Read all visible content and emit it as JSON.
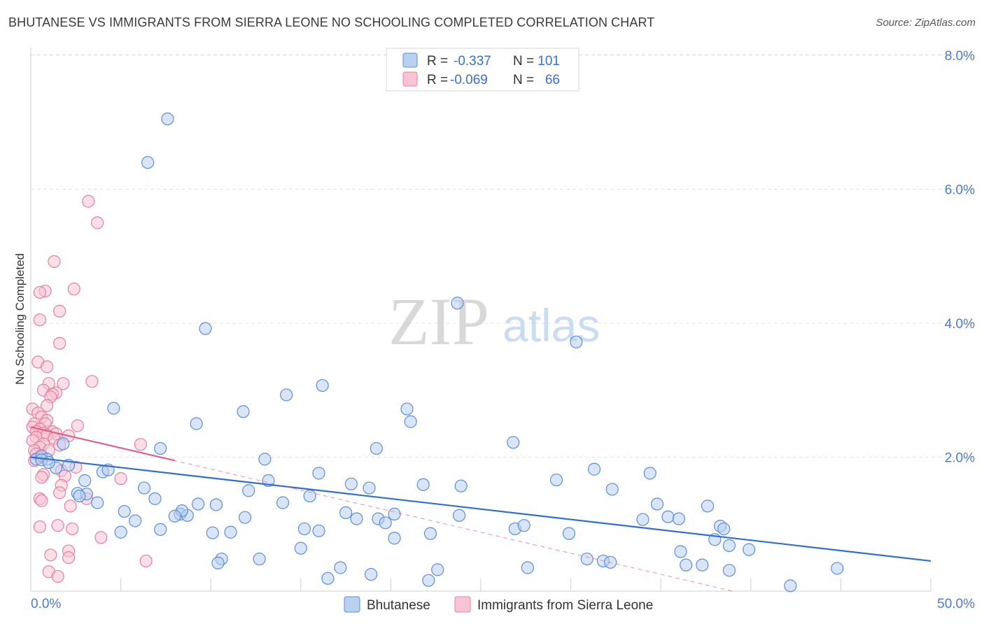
{
  "title": "BHUTANESE VS IMMIGRANTS FROM SIERRA LEONE NO SCHOOLING COMPLETED CORRELATION CHART",
  "source": "Source: ZipAtlas.com",
  "watermark": {
    "zip": "ZIP",
    "atlas": "atlas"
  },
  "colors": {
    "blue": "#5b8fd6",
    "blue_fill": "#b9d0f0",
    "blue_line": "#2f6fd0",
    "pink": "#e77fa2",
    "pink_fill": "#f6c4d4",
    "pink_line": "#e0608d"
  },
  "legend": {
    "rows": [
      {
        "r_label": "R =",
        "r_value": "-0.337",
        "n_label": "N =",
        "n_value": "101"
      },
      {
        "r_label": "R =",
        "r_value": "-0.069",
        "n_label": "N =",
        "n_value": "66"
      }
    ]
  },
  "bottom_legend": [
    "Bhutanese",
    "Immigrants from Sierra Leone"
  ],
  "chart_data": {
    "type": "scatter",
    "xlabel": "",
    "ylabel": "No Schooling Completed",
    "xlim": [
      0,
      50
    ],
    "ylim": [
      0,
      8.0
    ],
    "x_tick_labels": [
      "0.0%",
      "50.0%"
    ],
    "y_tick_labels": [
      "2.0%",
      "4.0%",
      "6.0%",
      "8.0%"
    ],
    "y_ticks": [
      2,
      4,
      6,
      8
    ],
    "grid": true,
    "series": [
      {
        "name": "Bhutanese",
        "r": -0.337,
        "n": 101,
        "trend": {
          "x": [
            0,
            50
          ],
          "y": [
            2.0,
            0.45
          ]
        },
        "points": [
          [
            7.6,
            7.05
          ],
          [
            6.5,
            6.4
          ],
          [
            9.7,
            3.92
          ],
          [
            16.2,
            3.07
          ],
          [
            23.7,
            4.3
          ],
          [
            30.3,
            3.72
          ],
          [
            4.6,
            2.73
          ],
          [
            11.8,
            2.68
          ],
          [
            14.2,
            2.93
          ],
          [
            20.9,
            2.72
          ],
          [
            9.2,
            2.5
          ],
          [
            21.1,
            2.53
          ],
          [
            7.2,
            2.13
          ],
          [
            19.2,
            2.13
          ],
          [
            26.8,
            2.22
          ],
          [
            1.8,
            2.2
          ],
          [
            0.3,
            1.97
          ],
          [
            0.6,
            2.02
          ],
          [
            0.9,
            1.97
          ],
          [
            1.4,
            1.84
          ],
          [
            2.1,
            1.88
          ],
          [
            3.0,
            1.65
          ],
          [
            4.0,
            1.78
          ],
          [
            4.3,
            1.81
          ],
          [
            13.0,
            1.97
          ],
          [
            13.2,
            1.65
          ],
          [
            16.0,
            1.76
          ],
          [
            17.8,
            1.6
          ],
          [
            18.8,
            1.54
          ],
          [
            21.8,
            1.59
          ],
          [
            23.9,
            1.57
          ],
          [
            29.2,
            1.66
          ],
          [
            32.3,
            1.52
          ],
          [
            34.4,
            1.76
          ],
          [
            6.3,
            1.54
          ],
          [
            6.9,
            1.38
          ],
          [
            12.1,
            1.5
          ],
          [
            15.5,
            1.42
          ],
          [
            2.6,
            1.46
          ],
          [
            3.7,
            1.32
          ],
          [
            3.1,
            1.45
          ],
          [
            9.3,
            1.3
          ],
          [
            10.3,
            1.29
          ],
          [
            14.0,
            1.32
          ],
          [
            5.2,
            1.19
          ],
          [
            5.8,
            1.05
          ],
          [
            8.3,
            1.15
          ],
          [
            8.7,
            1.13
          ],
          [
            8.4,
            1.2
          ],
          [
            11.9,
            1.1
          ],
          [
            17.5,
            1.17
          ],
          [
            18.1,
            1.08
          ],
          [
            19.3,
            1.08
          ],
          [
            19.7,
            1.02
          ],
          [
            20.2,
            1.15
          ],
          [
            23.8,
            1.13
          ],
          [
            34.0,
            1.07
          ],
          [
            34.8,
            1.3
          ],
          [
            35.4,
            1.11
          ],
          [
            36.0,
            1.08
          ],
          [
            37.6,
            1.27
          ],
          [
            38.3,
            0.97
          ],
          [
            38.5,
            0.93
          ],
          [
            26.9,
            0.93
          ],
          [
            27.4,
            0.98
          ],
          [
            15.2,
            0.93
          ],
          [
            16.0,
            0.9
          ],
          [
            11.1,
            0.88
          ],
          [
            5.0,
            0.88
          ],
          [
            7.2,
            0.92
          ],
          [
            10.1,
            0.87
          ],
          [
            22.2,
            0.86
          ],
          [
            29.9,
            0.86
          ],
          [
            20.2,
            0.79
          ],
          [
            38.0,
            0.77
          ],
          [
            38.8,
            0.68
          ],
          [
            39.9,
            0.62
          ],
          [
            15.0,
            0.64
          ],
          [
            36.1,
            0.59
          ],
          [
            30.9,
            0.48
          ],
          [
            31.8,
            0.45
          ],
          [
            32.2,
            0.43
          ],
          [
            36.4,
            0.39
          ],
          [
            37.3,
            0.39
          ],
          [
            10.6,
            0.48
          ],
          [
            10.4,
            0.42
          ],
          [
            12.7,
            0.48
          ],
          [
            17.2,
            0.35
          ],
          [
            27.6,
            0.35
          ],
          [
            22.6,
            0.32
          ],
          [
            38.8,
            0.31
          ],
          [
            44.8,
            0.34
          ],
          [
            18.9,
            0.25
          ],
          [
            16.5,
            0.19
          ],
          [
            22.1,
            0.16
          ],
          [
            42.2,
            0.08
          ],
          [
            0.6,
            1.96
          ],
          [
            1.0,
            1.92
          ],
          [
            2.7,
            1.42
          ],
          [
            8.0,
            1.12
          ],
          [
            31.3,
            1.82
          ]
        ]
      },
      {
        "name": "Immigrants from Sierra Leone",
        "r": -0.069,
        "n": 66,
        "trend": {
          "x": [
            0,
            8.0
          ],
          "y": [
            2.45,
            1.95
          ]
        },
        "trend_extended": {
          "x": [
            0,
            39.0
          ],
          "y": [
            2.45,
            0.0
          ]
        },
        "points": [
          [
            3.2,
            5.82
          ],
          [
            3.7,
            5.5
          ],
          [
            1.3,
            4.92
          ],
          [
            2.4,
            4.51
          ],
          [
            0.8,
            4.48
          ],
          [
            0.5,
            4.46
          ],
          [
            1.6,
            4.18
          ],
          [
            0.5,
            4.05
          ],
          [
            1.6,
            3.7
          ],
          [
            0.4,
            3.42
          ],
          [
            0.9,
            3.35
          ],
          [
            3.4,
            3.13
          ],
          [
            1.8,
            3.1
          ],
          [
            1.0,
            3.1
          ],
          [
            0.7,
            3.0
          ],
          [
            1.4,
            2.96
          ],
          [
            1.2,
            2.94
          ],
          [
            1.1,
            2.9
          ],
          [
            0.9,
            2.77
          ],
          [
            0.1,
            2.72
          ],
          [
            0.4,
            2.66
          ],
          [
            0.6,
            2.6
          ],
          [
            0.9,
            2.55
          ],
          [
            0.2,
            2.5
          ],
          [
            0.8,
            2.5
          ],
          [
            2.6,
            2.47
          ],
          [
            0.1,
            2.45
          ],
          [
            0.5,
            2.42
          ],
          [
            0.3,
            2.38
          ],
          [
            1.2,
            2.38
          ],
          [
            0.7,
            2.36
          ],
          [
            1.4,
            2.35
          ],
          [
            0.9,
            2.33
          ],
          [
            2.1,
            2.32
          ],
          [
            0.3,
            2.3
          ],
          [
            1.3,
            2.28
          ],
          [
            0.1,
            2.25
          ],
          [
            0.7,
            2.2
          ],
          [
            1.6,
            2.18
          ],
          [
            0.5,
            2.15
          ],
          [
            0.2,
            2.1
          ],
          [
            6.1,
            2.19
          ],
          [
            1.0,
            2.1
          ],
          [
            0.3,
            2.05
          ],
          [
            0.6,
            2.0
          ],
          [
            0.2,
            1.95
          ],
          [
            2.5,
            1.85
          ],
          [
            1.7,
            1.8
          ],
          [
            0.7,
            1.74
          ],
          [
            1.9,
            1.72
          ],
          [
            0.6,
            1.7
          ],
          [
            5.0,
            1.68
          ],
          [
            1.7,
            1.58
          ],
          [
            1.6,
            1.47
          ],
          [
            0.5,
            1.38
          ],
          [
            0.6,
            1.35
          ],
          [
            3.1,
            1.38
          ],
          [
            2.2,
            1.27
          ],
          [
            1.5,
            0.98
          ],
          [
            0.5,
            0.96
          ],
          [
            2.3,
            0.93
          ],
          [
            3.9,
            0.8
          ],
          [
            2.1,
            0.6
          ],
          [
            1.1,
            0.54
          ],
          [
            2.1,
            0.5
          ],
          [
            6.4,
            0.45
          ],
          [
            1.0,
            0.29
          ],
          [
            1.5,
            0.22
          ]
        ]
      }
    ]
  }
}
